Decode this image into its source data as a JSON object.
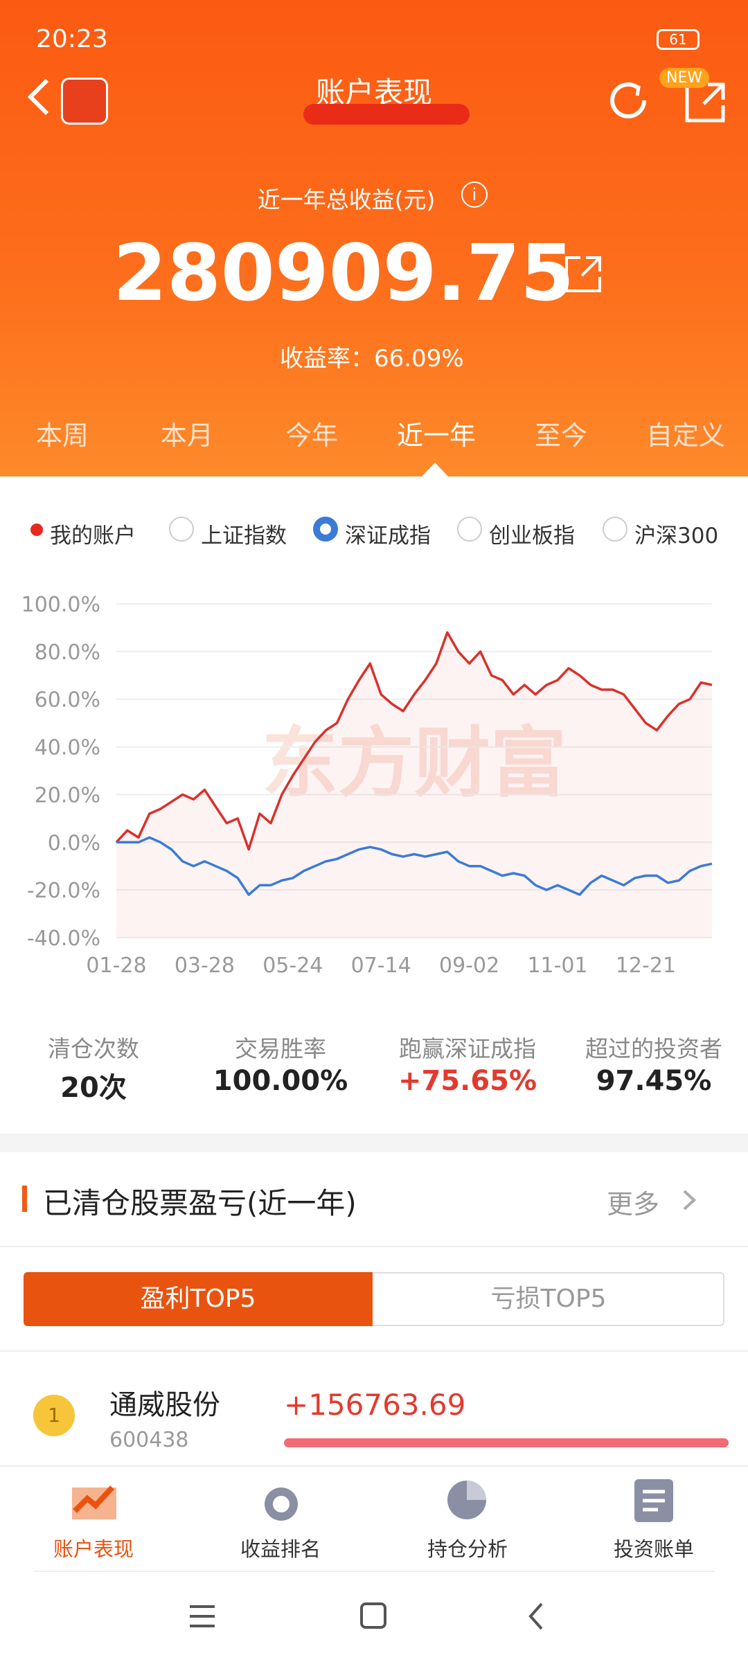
{
  "status_bar": {
    "time": "20:23",
    "battery": "61"
  },
  "header": {
    "title": "账户表现",
    "badge": "NEW"
  },
  "summary": {
    "label": "近一年总收益(元)",
    "value": "280909.75",
    "rate_label": "收益率：",
    "rate": "66.09%"
  },
  "tabs": [
    "本周",
    "本月",
    "今年",
    "近一年",
    "至今",
    "自定义"
  ],
  "comparison_indices": [
    "上证指数",
    "创业板指",
    "沪深300"
  ],
  "chart_data": {
    "type": "line",
    "watermark": "东方财富",
    "categories": [
      "01-28",
      null,
      null,
      null,
      null,
      null,
      null,
      null,
      "03-28",
      null,
      null,
      null,
      null,
      null,
      null,
      null,
      "05-24",
      null,
      null,
      null,
      null,
      null,
      null,
      null,
      "07-14",
      null,
      null,
      null,
      null,
      null,
      null,
      null,
      "09-02",
      null,
      null,
      null,
      null,
      null,
      null,
      null,
      "11-01",
      null,
      null,
      null,
      null,
      null,
      null,
      null,
      "12-21",
      null,
      null,
      null,
      null,
      null,
      null
    ],
    "series": [
      {
        "name": "我的账户",
        "color": "#d9312b",
        "values": [
          0,
          5,
          2,
          12,
          14,
          17,
          20,
          18,
          22,
          15,
          8,
          10,
          -3,
          12,
          8,
          20,
          28,
          35,
          42,
          47,
          50,
          60,
          68,
          75,
          62,
          58,
          55,
          62,
          68,
          75,
          88,
          80,
          75,
          80,
          70,
          68,
          62,
          66,
          62,
          66,
          68,
          73,
          70,
          66,
          64,
          64,
          62,
          56,
          50,
          47,
          53,
          58,
          60,
          67,
          66
        ]
      },
      {
        "name": "深证成指",
        "color": "#3b7bd6",
        "values": [
          0,
          0,
          0,
          2,
          0,
          -3,
          -8,
          -10,
          -8,
          -10,
          -12,
          -15,
          -22,
          -18,
          -18,
          -16,
          -15,
          -12,
          -10,
          -8,
          -7,
          -5,
          -3,
          -2,
          -3,
          -5,
          -6,
          -5,
          -6,
          -5,
          -4,
          -8,
          -10,
          -10,
          -12,
          -14,
          -13,
          -14,
          -18,
          -20,
          -18,
          -20,
          -22,
          -17,
          -14,
          -16,
          -18,
          -15,
          -14,
          -14,
          -17,
          -16,
          -12,
          -10,
          -9
        ]
      }
    ],
    "ylim": [
      -40,
      100
    ],
    "yticks": [
      {
        "value": 100,
        "label": "100.0%"
      },
      {
        "value": 80,
        "label": "80.0%"
      },
      {
        "value": 60,
        "label": "60.0%"
      },
      {
        "value": 40,
        "label": "40.0%"
      },
      {
        "value": 20,
        "label": "20.0%"
      },
      {
        "value": 0,
        "label": "0.0%"
      },
      {
        "value": -20,
        "label": "-20.0%"
      },
      {
        "value": -40,
        "label": "-40.0%"
      }
    ],
    "grid": true
  },
  "stats": [
    {
      "label": "清仓次数",
      "value": "20次"
    },
    {
      "label": "交易胜率",
      "value": "100.00%"
    },
    {
      "label": "跑赢深证成指",
      "value": "+75.65%"
    },
    {
      "label": "超过的投资者",
      "value": "97.45%"
    }
  ],
  "section": {
    "title": "已清仓股票盈亏(近一年)",
    "more": "更多",
    "toggle": [
      "盈利TOP5",
      "亏损TOP5"
    ],
    "rows": [
      {
        "rank": "1",
        "name": "通威股份",
        "code": "600438",
        "profit": "+156763.69"
      }
    ]
  },
  "bottom_nav": [
    "账户表现",
    "收益排名",
    "持仓分析",
    "投资账单"
  ]
}
